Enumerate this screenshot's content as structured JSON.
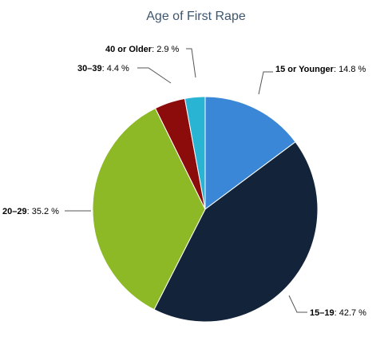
{
  "chart_data": {
    "type": "pie",
    "title": "Age of First Rape",
    "slices": [
      {
        "category": "15 or Younger",
        "value": 14.8,
        "value_label": "14.8 %",
        "color": "#3a87d8"
      },
      {
        "category": "15–19",
        "value": 42.7,
        "value_label": "42.7 %",
        "color": "#13243a"
      },
      {
        "category": "20–29",
        "value": 35.2,
        "value_label": "35.2 %",
        "color": "#8db927"
      },
      {
        "category": "30–39",
        "value": 4.4,
        "value_label": "4.4 %",
        "color": "#8c0c0c"
      },
      {
        "category": "40 or Older",
        "value": 2.9,
        "value_label": "2.9 %",
        "color": "#2ab4d4"
      }
    ],
    "start_angle_deg": 0,
    "direction": "clockwise",
    "legend": "none"
  }
}
